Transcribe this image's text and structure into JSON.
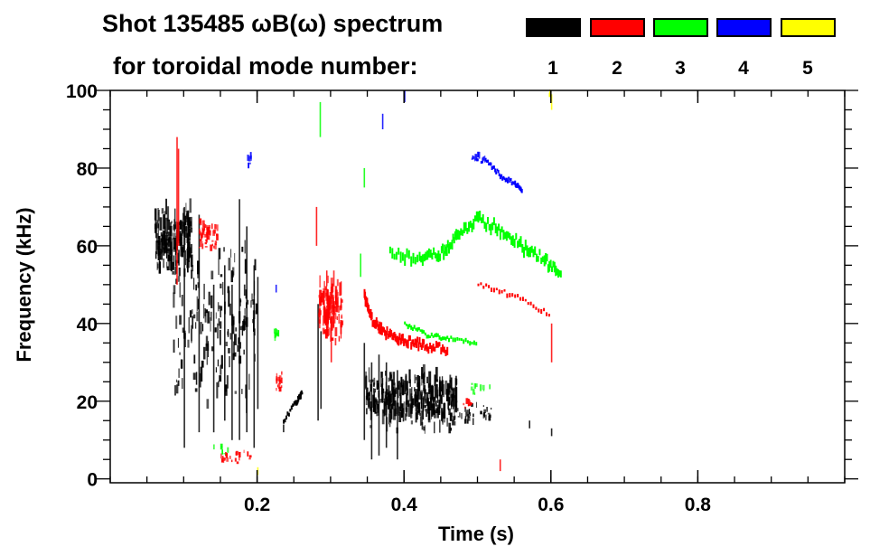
{
  "chart_data": {
    "type": "heatmap",
    "title_line1": "Shot 135485 ωB(ω) spectrum",
    "title_line2": "for toroidal mode number:",
    "xlabel": "Time (s)",
    "ylabel": "Frequency (kHz)",
    "xlim": [
      0,
      1.0
    ],
    "ylim": [
      -1,
      100
    ],
    "xticks": [
      "0.2",
      "0.4",
      "0.6",
      "0.8"
    ],
    "xtick_values": [
      0.2,
      0.4,
      0.6,
      0.8
    ],
    "x_minor_step": 0.05,
    "yticks": [
      "0",
      "20",
      "40",
      "60",
      "80",
      "100"
    ],
    "ytick_values": [
      0,
      20,
      40,
      60,
      80,
      100
    ],
    "y_minor_step": 5,
    "legend": [
      {
        "label": "1",
        "color": "#000000"
      },
      {
        "label": "2",
        "color": "#ff0000"
      },
      {
        "label": "3",
        "color": "#00ff00"
      },
      {
        "label": "4",
        "color": "#0000ff"
      },
      {
        "label": "5",
        "color": "#ffff00"
      }
    ],
    "modes": [
      {
        "n": 1,
        "blobs": [
          [
            0.06,
            0.11,
            60,
            10,
            180
          ],
          [
            0.085,
            0.2,
            38,
            22,
            160
          ],
          [
            0.345,
            0.47,
            19,
            8,
            320
          ],
          [
            0.46,
            0.52,
            16,
            3,
            40
          ]
        ],
        "streaks": [
          [
            0.1,
            8,
            70
          ],
          [
            0.12,
            12,
            68
          ],
          [
            0.14,
            12,
            50
          ],
          [
            0.155,
            15,
            55
          ],
          [
            0.165,
            10,
            50
          ],
          [
            0.175,
            10,
            72
          ],
          [
            0.185,
            12,
            65
          ],
          [
            0.195,
            8,
            55
          ],
          [
            0.2,
            18,
            52
          ],
          [
            0.282,
            15,
            45
          ],
          [
            0.286,
            18,
            38
          ],
          [
            0.345,
            10,
            35
          ],
          [
            0.355,
            5,
            30
          ],
          [
            0.365,
            6,
            32
          ],
          [
            0.375,
            8,
            30
          ],
          [
            0.39,
            5,
            28
          ],
          [
            0.235,
            12,
            14
          ],
          [
            0.6,
            11,
            13
          ],
          [
            0.57,
            13,
            15
          ]
        ],
        "tracks": [
          {
            "points": [
              [
                0.235,
                15
              ],
              [
                0.26,
                22
              ],
              [
                0.25,
                19
              ]
            ],
            "width": 1
          }
        ]
      },
      {
        "n": 2,
        "blobs": [
          [
            0.12,
            0.145,
            62,
            4,
            60
          ],
          [
            0.283,
            0.315,
            42,
            9,
            110
          ],
          [
            0.225,
            0.233,
            24,
            3,
            15
          ],
          [
            0.15,
            0.19,
            5,
            2,
            25
          ],
          [
            0.48,
            0.49,
            19,
            2,
            8
          ]
        ],
        "streaks": [
          [
            0.09,
            50,
            88
          ],
          [
            0.092,
            60,
            85
          ],
          [
            0.28,
            60,
            70
          ],
          [
            0.3,
            30,
            40
          ],
          [
            0.53,
            2,
            5
          ],
          [
            0.6,
            30,
            40
          ]
        ],
        "tracks": [
          {
            "points": [
              [
                0.345,
                47
              ],
              [
                0.355,
                41
              ],
              [
                0.37,
                38
              ],
              [
                0.39,
                36
              ],
              [
                0.41,
                35
              ],
              [
                0.43,
                34
              ],
              [
                0.46,
                33
              ]
            ],
            "width": 2
          },
          {
            "points": [
              [
                0.5,
                50
              ],
              [
                0.55,
                47
              ],
              [
                0.6,
                42
              ]
            ],
            "width": 1
          }
        ]
      },
      {
        "n": 3,
        "blobs": [
          [
            0.222,
            0.228,
            37,
            2,
            10
          ],
          [
            0.49,
            0.52,
            23,
            2,
            10
          ],
          [
            0.14,
            0.16,
            7,
            2,
            6
          ]
        ],
        "streaks": [
          [
            0.285,
            88,
            97
          ],
          [
            0.345,
            75,
            80
          ],
          [
            0.34,
            52,
            58
          ]
        ],
        "tracks": [
          {
            "points": [
              [
                0.38,
                58
              ],
              [
                0.42,
                56
              ],
              [
                0.45,
                58
              ],
              [
                0.47,
                62
              ],
              [
                0.5,
                67
              ],
              [
                0.53,
                64
              ],
              [
                0.56,
                60
              ],
              [
                0.59,
                56
              ],
              [
                0.614,
                52
              ]
            ],
            "width": 2.5
          },
          {
            "points": [
              [
                0.4,
                40
              ],
              [
                0.43,
                37
              ],
              [
                0.46,
                36
              ],
              [
                0.5,
                35
              ]
            ],
            "width": 1
          }
        ]
      },
      {
        "n": 4,
        "blobs": [
          [
            0.49,
            0.51,
            82,
            1,
            15
          ],
          [
            0.185,
            0.192,
            82,
            3,
            6
          ]
        ],
        "streaks": [
          [
            0.225,
            48,
            50
          ],
          [
            0.4,
            97,
            100
          ],
          [
            0.37,
            90,
            94
          ]
        ],
        "tracks": [
          {
            "points": [
              [
                0.51,
                82
              ],
              [
                0.53,
                78
              ],
              [
                0.55,
                76
              ],
              [
                0.56,
                74
              ]
            ],
            "width": 1
          }
        ]
      },
      {
        "n": 5,
        "blobs": [
          [
            0.597,
            0.601,
            98,
            1,
            4
          ]
        ],
        "streaks": [
          [
            0.2,
            1,
            3
          ],
          [
            0.6,
            95,
            99
          ]
        ],
        "tracks": []
      }
    ]
  }
}
